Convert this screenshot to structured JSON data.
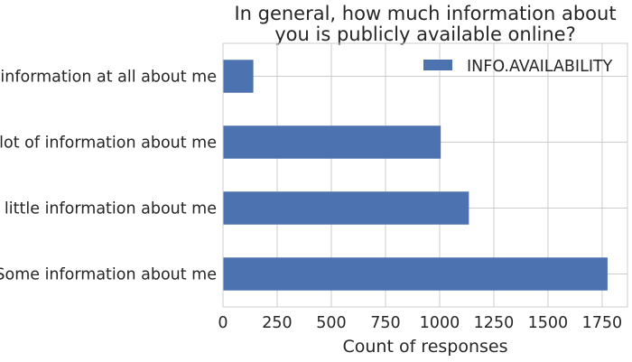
{
  "chart_data": {
    "type": "bar",
    "orientation": "horizontal",
    "title": "In general, how much information about\nyou is publicly available online?",
    "xlabel": "Count of responses",
    "ylabel": "",
    "categories": [
      "Some information about me",
      "A little information about me",
      "A lot of information about me",
      "No information at all about me"
    ],
    "series": [
      {
        "name": "INFO.AVAILABILITY",
        "color": "#4c72b0",
        "values": [
          1775,
          1135,
          1005,
          140
        ]
      }
    ],
    "xlim": [
      0,
      1867
    ],
    "xticks": [
      0,
      250,
      500,
      750,
      1000,
      1250,
      1500,
      1750
    ],
    "grid": true,
    "legend_position": "top-right"
  }
}
